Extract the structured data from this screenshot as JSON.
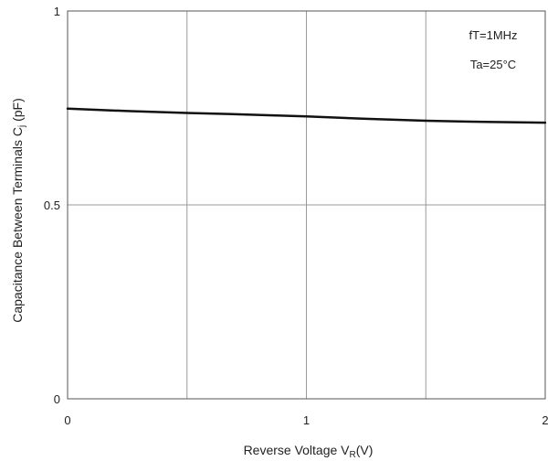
{
  "chart_data": {
    "type": "line",
    "title": "",
    "xlabel": {
      "main": "Reverse Voltage  V",
      "sub": "R",
      "tail": "(V)"
    },
    "ylabel": {
      "main": "Capacitance Between Terminals C",
      "sub": "j",
      "tail": " (pF)"
    },
    "xlim": [
      0,
      2
    ],
    "ylim": [
      0,
      1
    ],
    "x_ticks": [
      0,
      0.5,
      1,
      1.5,
      2
    ],
    "y_ticks": [
      0,
      0.5,
      1
    ],
    "x_tick_labels": [
      "0",
      "",
      "1",
      "",
      "2"
    ],
    "y_tick_labels": [
      "0",
      "0.5",
      "1"
    ],
    "grid": true,
    "annotations": [
      "fT=1MHz",
      "Ta=25°C"
    ],
    "series": [
      {
        "x": [
          0,
          0.25,
          0.5,
          0.75,
          1.0,
          1.25,
          1.5,
          1.75,
          2.0
        ],
        "y": [
          0.748,
          0.742,
          0.737,
          0.733,
          0.728,
          0.722,
          0.717,
          0.714,
          0.712
        ],
        "color": "#111111"
      }
    ]
  }
}
